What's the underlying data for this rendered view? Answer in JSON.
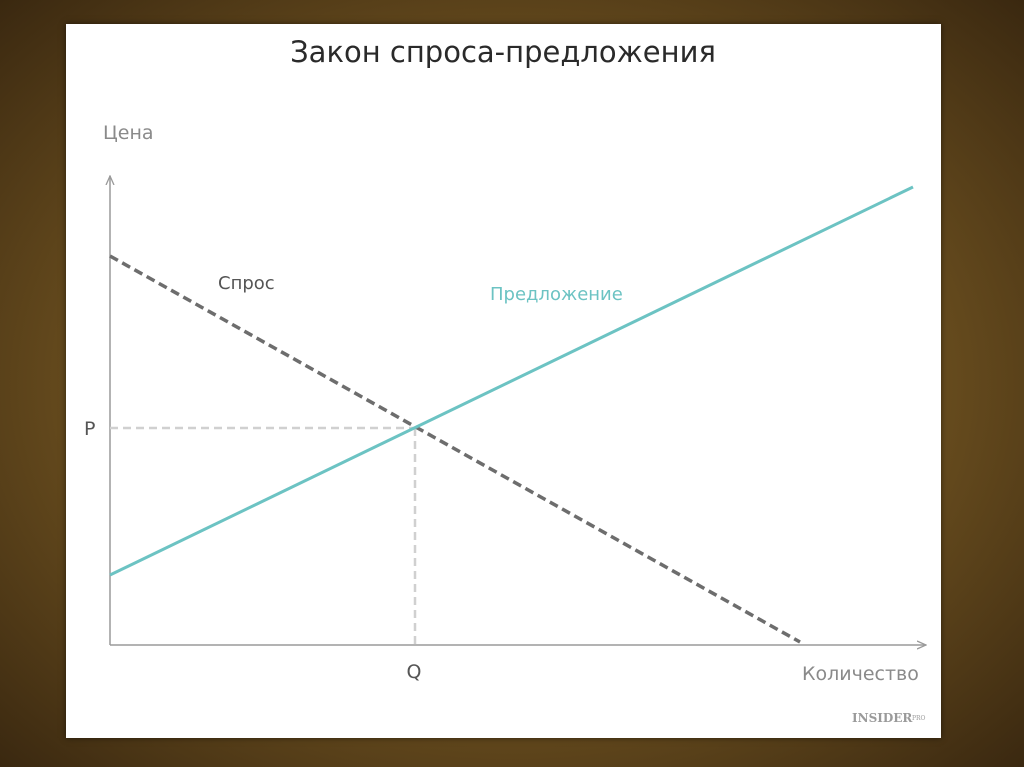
{
  "title": "Закон спроса-предложения",
  "diagram": {
    "y_axis_label": "Цена",
    "x_axis_label": "Количество",
    "price_marker": "P",
    "quantity_marker": "Q",
    "demand_label": "Спрос",
    "supply_label": "Предложение",
    "colors": {
      "demand": "#6d6d6d",
      "supply": "#6cc3c3",
      "axes": "#9a9a9a",
      "guides": "#d0d0d0"
    }
  },
  "logo": {
    "text": "INSIDER",
    "suffix": "PRO"
  }
}
